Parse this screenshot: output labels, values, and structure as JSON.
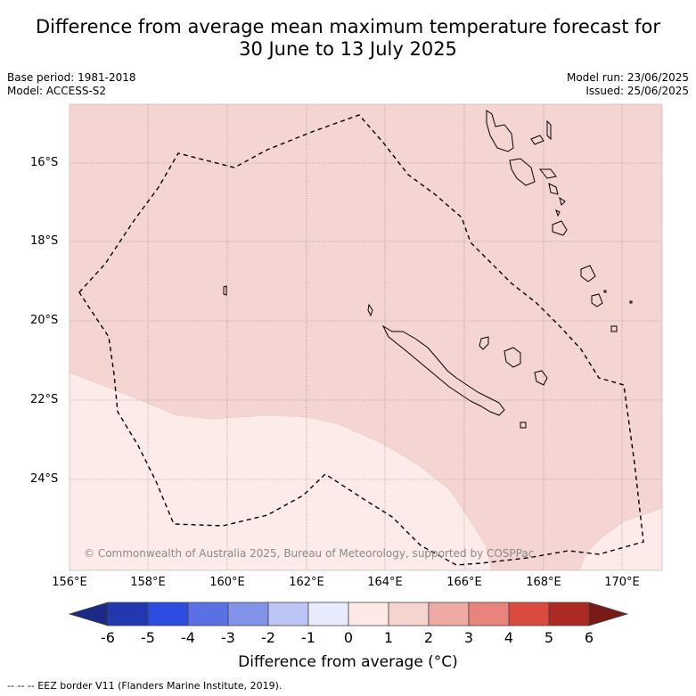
{
  "title_line1": "Difference from average mean maximum temperature forecast for",
  "title_line2": "30 June to 13 July 2025",
  "base_period": "Base period: 1981-2018",
  "model": "Model: ACCESS-S2",
  "model_run": "Model run: 23/06/2025",
  "issued": "Issued: 25/06/2025",
  "map": {
    "lon_range": [
      156.0,
      171.0
    ],
    "lat_range": [
      -15.0,
      -26.8
    ],
    "lat_ticks": [
      "16°S",
      "18°S",
      "20°S",
      "22°S",
      "24°S"
    ],
    "lat_values": [
      -16,
      -18,
      -20,
      -22,
      -24
    ],
    "lon_ticks": [
      "156°E",
      "158°E",
      "160°E",
      "162°E",
      "164°E",
      "166°E",
      "168°E",
      "170°E"
    ],
    "lon_values": [
      156,
      158,
      160,
      162,
      164,
      166,
      168,
      170
    ],
    "copyright": "© Commonwealth of Australia 2025, Bureau of Meteorology, supported by COSPPac",
    "field_colors": {
      "0_to_1": "#fcebe9",
      "1_to_2": "#f5d5d2"
    }
  },
  "colorbar": {
    "ticks": [
      "-6",
      "-5",
      "-4",
      "-3",
      "-2",
      "-1",
      "0",
      "1",
      "2",
      "3",
      "4",
      "5",
      "6"
    ],
    "colors": [
      "#1a2a85",
      "#2238b0",
      "#2e4de0",
      "#5a70e4",
      "#8294ea",
      "#bcc5f4",
      "#e8ebfa",
      "#fdeae7",
      "#f5d3cf",
      "#eeaba5",
      "#e8847c",
      "#db4a3e",
      "#ad2a22",
      "#7a1a16"
    ],
    "title": "Difference from average (°C)"
  },
  "footer": "-- -- -- EEZ border V11 (Flanders Marine Institute, 2019)."
}
